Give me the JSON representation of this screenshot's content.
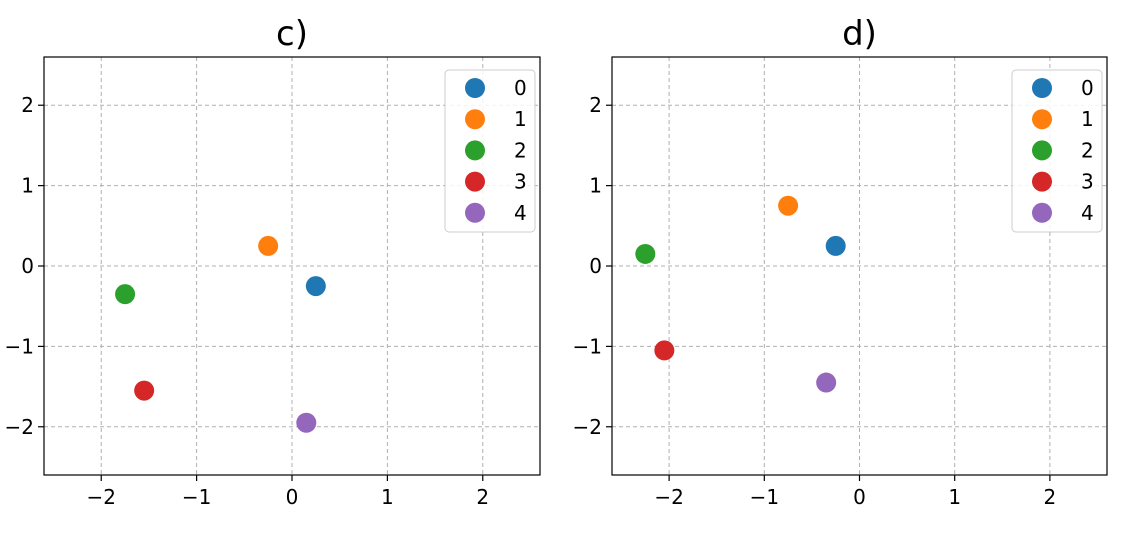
{
  "chart_data": [
    {
      "type": "scatter",
      "title": "c)",
      "xlabel": "",
      "ylabel": "",
      "xlim": [
        -2.6,
        2.6
      ],
      "ylim": [
        -2.6,
        2.6
      ],
      "xticks": [
        -2,
        -1,
        0,
        1,
        2
      ],
      "yticks": [
        -2,
        -1,
        0,
        1,
        2
      ],
      "xtick_labels": [
        "−2",
        "−1",
        "0",
        "1",
        "2"
      ],
      "ytick_labels": [
        "−2",
        "−1",
        "0",
        "1",
        "2"
      ],
      "grid": true,
      "legend_position": "top-right",
      "series": [
        {
          "name": "0",
          "color": "#1f77b4",
          "points": [
            [
              0.25,
              -0.25
            ]
          ]
        },
        {
          "name": "1",
          "color": "#ff7f0e",
          "points": [
            [
              -0.25,
              0.25
            ]
          ]
        },
        {
          "name": "2",
          "color": "#2ca02c",
          "points": [
            [
              -1.75,
              -0.35
            ]
          ]
        },
        {
          "name": "3",
          "color": "#d62728",
          "points": [
            [
              -1.55,
              -1.55
            ]
          ]
        },
        {
          "name": "4",
          "color": "#9467bd",
          "points": [
            [
              0.15,
              -1.95
            ]
          ]
        }
      ]
    },
    {
      "type": "scatter",
      "title": "d)",
      "xlabel": "",
      "ylabel": "",
      "xlim": [
        -2.6,
        2.6
      ],
      "ylim": [
        -2.6,
        2.6
      ],
      "xticks": [
        -2,
        -1,
        0,
        1,
        2
      ],
      "yticks": [
        -2,
        -1,
        0,
        1,
        2
      ],
      "xtick_labels": [
        "−2",
        "−1",
        "0",
        "1",
        "2"
      ],
      "ytick_labels": [
        "−2",
        "−1",
        "0",
        "1",
        "2"
      ],
      "grid": true,
      "legend_position": "top-right",
      "series": [
        {
          "name": "0",
          "color": "#1f77b4",
          "points": [
            [
              -0.25,
              0.25
            ]
          ]
        },
        {
          "name": "1",
          "color": "#ff7f0e",
          "points": [
            [
              -0.75,
              0.75
            ]
          ]
        },
        {
          "name": "2",
          "color": "#2ca02c",
          "points": [
            [
              -2.25,
              0.15
            ]
          ]
        },
        {
          "name": "3",
          "color": "#d62728",
          "points": [
            [
              -2.05,
              -1.05
            ]
          ]
        },
        {
          "name": "4",
          "color": "#9467bd",
          "points": [
            [
              -0.35,
              -1.45
            ]
          ]
        }
      ]
    }
  ]
}
